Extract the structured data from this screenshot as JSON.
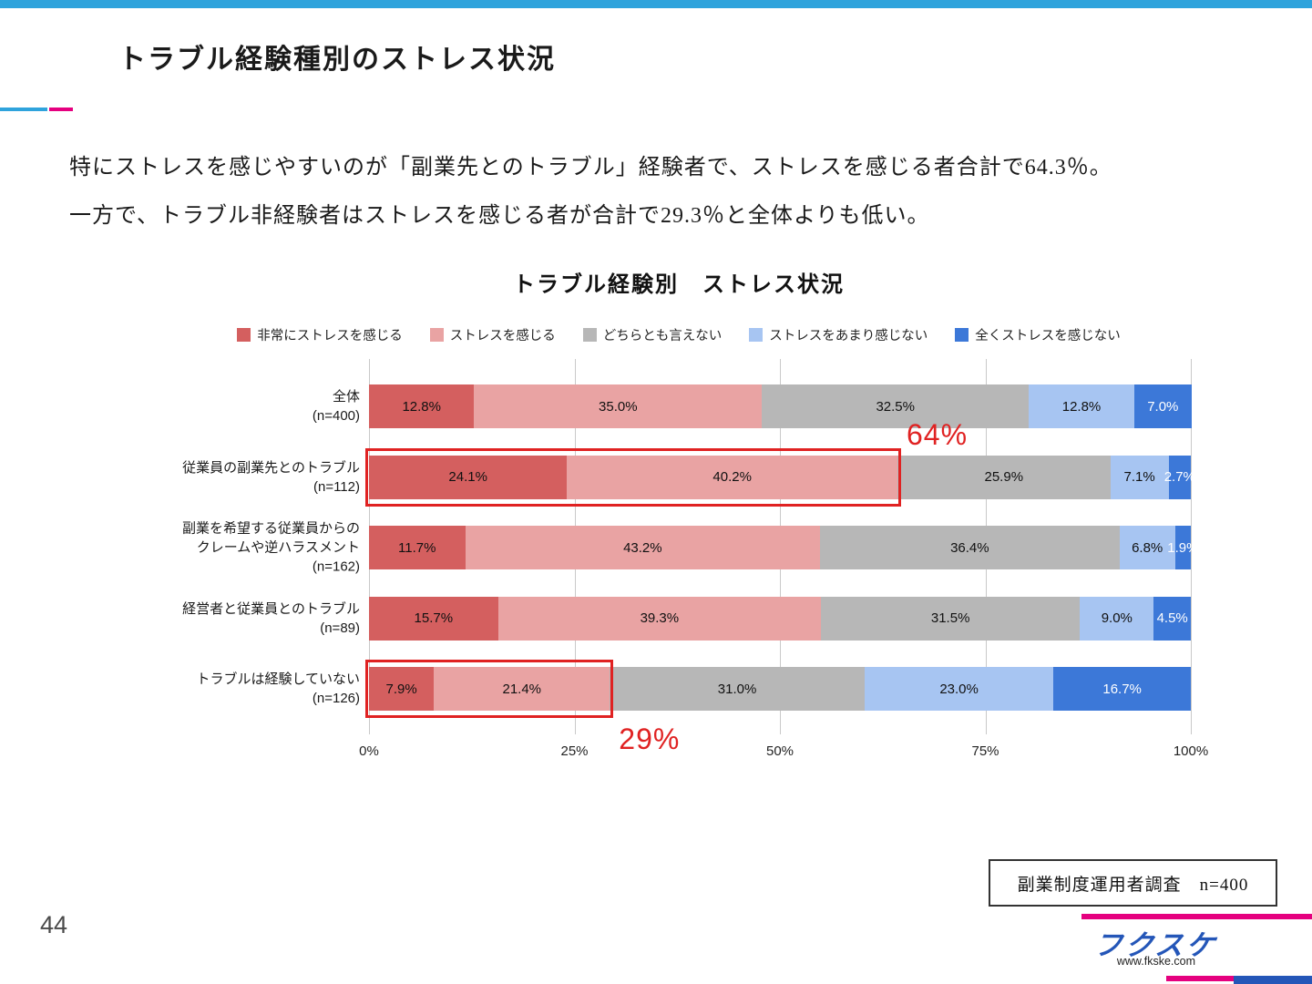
{
  "page": {
    "title": "トラブル経験種別のストレス状況",
    "body_lines": [
      "特にストレスを感じやすいのが「副業先とのトラブル」経験者で、ストレスを感じる者合計で64.3％。",
      "一方で、トラブル非経験者はストレスを感じる者が合計で29.3％と全体よりも低い。"
    ],
    "source_note": "副業制度運用者調査　n=400",
    "page_number": "44",
    "footer": {
      "logo_text": "フクスケ",
      "website": "www.fkske.com"
    },
    "accent_colors": {
      "top_bar": "#2fa3dc",
      "magenta": "#e5007f",
      "logo_blue": "#2456b8",
      "annotation_red": "#e02222"
    }
  },
  "chart_data": {
    "type": "bar",
    "variant": "horizontal-stacked-100",
    "title": "トラブル経験別　ストレス状況",
    "categories": [
      [
        "全体",
        "(n=400)"
      ],
      [
        "従業員の副業先とのトラブル",
        "(n=112)"
      ],
      [
        "副業を希望する従業員からの",
        "クレームや逆ハラスメント",
        "(n=162)"
      ],
      [
        "経営者と従業員とのトラブル",
        "(n=89)"
      ],
      [
        "トラブルは経験していない",
        "(n=126)"
      ]
    ],
    "series": [
      {
        "name": "非常にストレスを感じる",
        "color": "#d45f5f",
        "label_color": "#111111",
        "values": [
          12.8,
          24.1,
          11.7,
          15.7,
          7.9
        ]
      },
      {
        "name": "ストレスを感じる",
        "color": "#e9a3a3",
        "label_color": "#111111",
        "values": [
          35.0,
          40.2,
          43.2,
          39.3,
          21.4
        ]
      },
      {
        "name": "どちらとも言えない",
        "color": "#b7b7b7",
        "label_color": "#111111",
        "values": [
          32.5,
          25.9,
          36.4,
          31.5,
          31.0
        ]
      },
      {
        "name": "ストレスをあまり感じない",
        "color": "#a7c5f2",
        "label_color": "#111111",
        "values": [
          12.8,
          7.1,
          6.8,
          9.0,
          23.0
        ]
      },
      {
        "name": "全くストレスを感じない",
        "color": "#3c78d8",
        "label_color": "#ffffff",
        "values": [
          7.0,
          2.7,
          1.9,
          4.5,
          16.7
        ]
      }
    ],
    "x_ticks": [
      "0%",
      "25%",
      "50%",
      "75%",
      "100%"
    ],
    "xlim": [
      0,
      100
    ],
    "grid": true,
    "legend_position": "top",
    "annotations": [
      {
        "label": "64%",
        "row": 1,
        "span_pct": 64.3,
        "label_position": "above-right"
      },
      {
        "label": "29%",
        "row": 4,
        "span_pct": 29.3,
        "label_position": "below-right"
      }
    ]
  }
}
